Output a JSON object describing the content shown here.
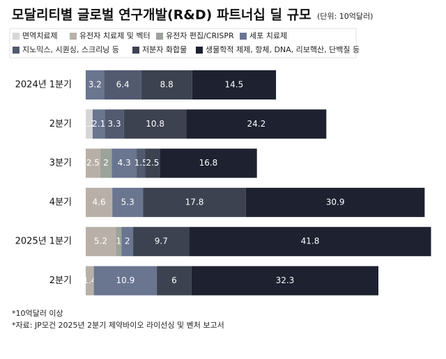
{
  "chart_data": {
    "type": "stacked-bar-horizontal",
    "title": "모달리티별 글로벌 연구개발(R&D) 파트너십 딜 규모",
    "subtitle": "(단위: 10억달러)",
    "categories": [
      "2024년 1분기",
      "2분기",
      "3분기",
      "4분기",
      "2025년 1분기",
      "2분기"
    ],
    "series": [
      {
        "name": "면역치료제",
        "color": "#d6d6d6",
        "values": [
          null,
          1.2,
          null,
          null,
          null,
          null
        ]
      },
      {
        "name": "유전자 치료제 및 벡터",
        "color": "#b8b0a8",
        "values": [
          null,
          null,
          2.5,
          4.6,
          5.2,
          1.4
        ]
      },
      {
        "name": "유전자 편집/CRISPR",
        "color": "#9ba39b",
        "values": [
          null,
          null,
          2,
          null,
          1,
          null
        ]
      },
      {
        "name": "세포 치료제",
        "color": "#6a7590",
        "values": [
          3.2,
          2.1,
          4.3,
          5.3,
          2,
          10.9
        ]
      },
      {
        "name": "지노믹스, 시퀀싱, 스크리닝 등",
        "color": "#525a70",
        "values": [
          6.4,
          3.3,
          1.5,
          null,
          null,
          null
        ]
      },
      {
        "name": "저분자 화합물",
        "color": "#3c4250",
        "values": [
          8.8,
          10.8,
          2.5,
          17.8,
          9.7,
          6
        ]
      },
      {
        "name": "생물학적 제제, 항체, DNA, 리보핵산, 단백질 등",
        "color": "#1d2130",
        "values": [
          14.5,
          24.2,
          16.8,
          30.9,
          41.8,
          32.3
        ]
      }
    ],
    "notes": [
      "*10억달러 이상",
      "*자료: JP모건 2025년 2분기 제약바이오 라이선싱 및 벤처 보고서"
    ]
  }
}
